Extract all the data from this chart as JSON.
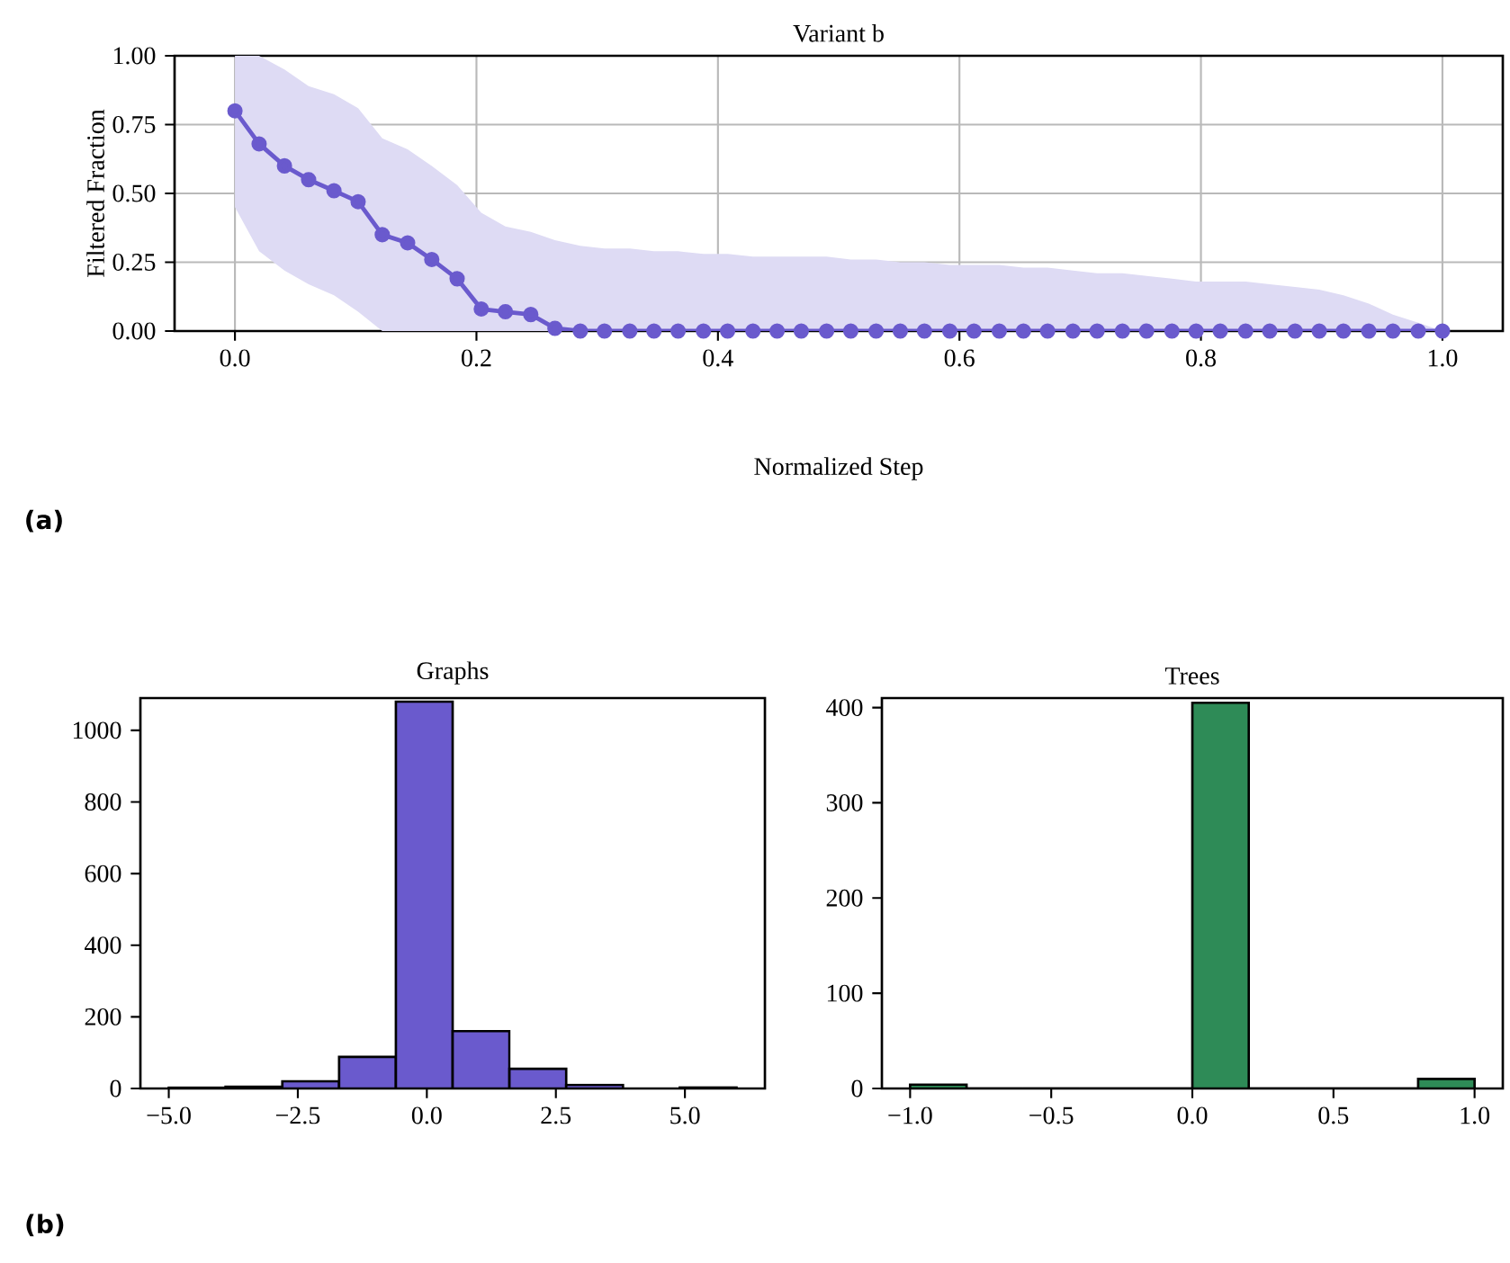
{
  "chart_data": [
    {
      "type": "line",
      "title": "Variant b",
      "xlabel": "Normalized Step",
      "ylabel": "Filtered Fraction",
      "x": [
        0,
        0.02,
        0.041,
        0.061,
        0.082,
        0.102,
        0.122,
        0.143,
        0.163,
        0.184,
        0.204,
        0.224,
        0.245,
        0.265,
        0.286,
        0.306,
        0.327,
        0.347,
        0.367,
        0.388,
        0.408,
        0.429,
        0.449,
        0.469,
        0.49,
        0.51,
        0.531,
        0.551,
        0.571,
        0.592,
        0.612,
        0.633,
        0.653,
        0.673,
        0.694,
        0.714,
        0.735,
        0.755,
        0.776,
        0.796,
        0.816,
        0.837,
        0.857,
        0.878,
        0.898,
        0.918,
        0.939,
        0.959,
        0.98,
        1.0
      ],
      "series": [
        {
          "color": "#6a5acd",
          "values": [
            0.8,
            0.68,
            0.6,
            0.55,
            0.51,
            0.47,
            0.35,
            0.32,
            0.26,
            0.19,
            0.08,
            0.07,
            0.06,
            0.01,
            0,
            0,
            0,
            0,
            0,
            0,
            0,
            0,
            0,
            0,
            0,
            0,
            0,
            0,
            0,
            0,
            0,
            0,
            0,
            0,
            0,
            0,
            0,
            0,
            0,
            0,
            0,
            0,
            0,
            0,
            0,
            0,
            0,
            0,
            0,
            0
          ],
          "upper": [
            1.0,
            1.0,
            0.95,
            0.89,
            0.86,
            0.81,
            0.7,
            0.66,
            0.6,
            0.53,
            0.43,
            0.38,
            0.36,
            0.33,
            0.31,
            0.3,
            0.3,
            0.29,
            0.29,
            0.28,
            0.28,
            0.27,
            0.27,
            0.27,
            0.27,
            0.26,
            0.26,
            0.25,
            0.25,
            0.24,
            0.24,
            0.24,
            0.23,
            0.23,
            0.22,
            0.21,
            0.21,
            0.2,
            0.19,
            0.18,
            0.18,
            0.18,
            0.17,
            0.16,
            0.15,
            0.13,
            0.1,
            0.06,
            0.03,
            0.0
          ],
          "lower": [
            0.45,
            0.29,
            0.22,
            0.17,
            0.13,
            0.07,
            0,
            0,
            0,
            0,
            0,
            0,
            0,
            0,
            0,
            0,
            0,
            0,
            0,
            0,
            0,
            0,
            0,
            0,
            0,
            0,
            0,
            0,
            0,
            0,
            0,
            0,
            0,
            0,
            0,
            0,
            0,
            0,
            0,
            0,
            0,
            0,
            0,
            0,
            0,
            0,
            0,
            0,
            0,
            0
          ]
        }
      ],
      "xlim": [
        -0.05,
        1.05
      ],
      "ylim": [
        0,
        1
      ],
      "xticks": [
        {
          "value": 0,
          "label": "0.0"
        },
        {
          "value": 0.2,
          "label": "0.2"
        },
        {
          "value": 0.4,
          "label": "0.4"
        },
        {
          "value": 0.6,
          "label": "0.6"
        },
        {
          "value": 0.8,
          "label": "0.8"
        },
        {
          "value": 1.0,
          "label": "1.0"
        }
      ],
      "yticks": [
        {
          "value": 0,
          "label": "0.00"
        },
        {
          "value": 0.25,
          "label": "0.25"
        },
        {
          "value": 0.5,
          "label": "0.50"
        },
        {
          "value": 0.75,
          "label": "0.75"
        },
        {
          "value": 1.0,
          "label": "1.00"
        }
      ],
      "grid": true,
      "marker": "circle",
      "annotations": [
        "(a)"
      ]
    },
    {
      "type": "histogram",
      "title": "Graphs",
      "bins": [
        -5.0,
        -3.9,
        -2.8,
        -1.7,
        -0.6,
        0.5,
        1.6,
        2.7,
        3.8,
        4.9,
        6.0
      ],
      "values": [
        2,
        5,
        20,
        88,
        1080,
        160,
        55,
        10,
        null,
        3
      ],
      "color": "#6a5acd",
      "xlim": [
        -5.55,
        6.55
      ],
      "ylim": [
        0,
        1090
      ],
      "xticks": [
        {
          "value": -5,
          "label": "−5.0"
        },
        {
          "value": -2.5,
          "label": "−2.5"
        },
        {
          "value": 0,
          "label": "0.0"
        },
        {
          "value": 2.5,
          "label": "2.5"
        },
        {
          "value": 5,
          "label": "5.0"
        }
      ],
      "yticks": [
        0,
        200,
        400,
        600,
        800,
        1000
      ],
      "annotations": [
        "(b)"
      ]
    },
    {
      "type": "histogram",
      "title": "Trees",
      "bins": [
        -1.0,
        -0.8,
        -0.6,
        -0.4,
        -0.2,
        0.0,
        0.2,
        0.4,
        0.6,
        0.8,
        1.0
      ],
      "values": [
        4,
        0,
        0,
        0,
        0,
        405,
        0,
        0,
        0,
        10
      ],
      "color": "#2e8b57",
      "xlim": [
        -1.1,
        1.1
      ],
      "ylim": [
        0,
        410
      ],
      "xticks": [
        {
          "value": -1,
          "label": "−1.0"
        },
        {
          "value": -0.5,
          "label": "−0.5"
        },
        {
          "value": 0,
          "label": "0.0"
        },
        {
          "value": 0.5,
          "label": "0.5"
        },
        {
          "value": 1,
          "label": "1.0"
        }
      ],
      "yticks": [
        0,
        100,
        200,
        300,
        400
      ]
    }
  ]
}
